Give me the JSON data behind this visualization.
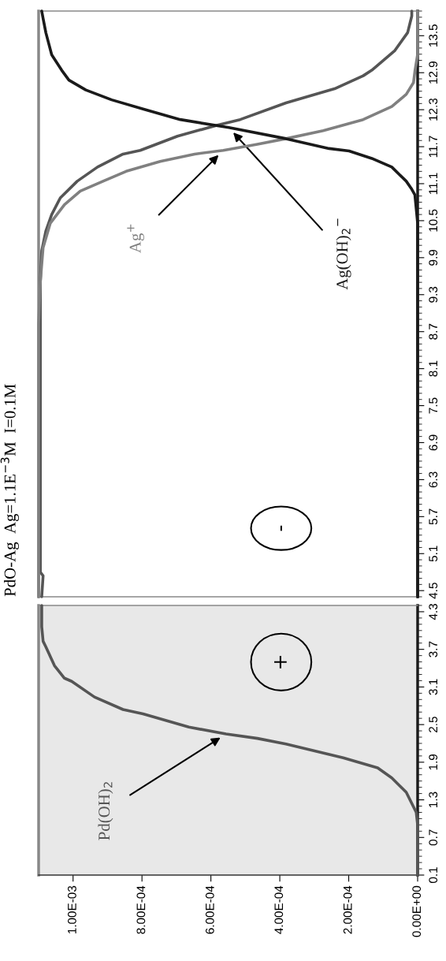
{
  "chart_data": [
    {
      "type": "line",
      "xlim": [
        0.0011,
        0
      ],
      "ylim": [
        0.1,
        4.4
      ],
      "xticks": [
        {
          "value": 0.001,
          "label": "1.00E-03"
        },
        {
          "value": 0.0008,
          "label": "8.00E-04"
        },
        {
          "value": 0.0006,
          "label": "6.00E-04"
        },
        {
          "value": 0.0004,
          "label": "4.00E-04"
        },
        {
          "value": 0.0002,
          "label": "2.00E-04"
        },
        {
          "value": 0,
          "label": "0.00E+00"
        }
      ],
      "yticks": [
        0.1,
        0.7,
        1.3,
        1.9,
        2.5,
        3.1,
        3.7,
        4.3
      ],
      "bands": [
        {
          "axis": "y",
          "from": 0.1,
          "to": 4.4,
          "color": "#e8e8e8"
        }
      ],
      "annotations": [
        "+"
      ],
      "series": [
        {
          "name": "Pd(OH)$_{2}$",
          "color": "#555555",
          "x": [
            0,
            0,
            4e-06,
            3.3e-05,
            7.5e-05,
            0.000116,
            0.000216,
            0.000382,
            0.000465,
            0.000556,
            0.000664,
            0.000797,
            0.000855,
            0.000938,
            0.001004,
            0.001025,
            0.001054,
            0.001079,
            0.001087,
            0.001091,
            0.001091
          ],
          "values": [
            0.1,
            0.9,
            1.1,
            1.42,
            1.65,
            1.81,
            1.97,
            2.19,
            2.28,
            2.35,
            2.46,
            2.67,
            2.74,
            2.94,
            3.19,
            3.24,
            3.44,
            3.74,
            3.83,
            4.06,
            4.4
          ]
        }
      ]
    },
    {
      "type": "line",
      "title": "PdO-Ag  Ag=1.1E$^{−3}$M  I=0.1M",
      "xlim": [
        0.0011,
        0
      ],
      "ylim": [
        4.4,
        13.9
      ],
      "tick_labels": "y",
      "yticks": [
        4.5,
        5.1,
        5.7,
        6.3,
        6.9,
        7.5,
        8.1,
        8.7,
        9.3,
        9.9,
        10.5,
        11.1,
        11.7,
        12.3,
        12.9,
        13.5
      ],
      "annotations": [
        "-"
      ],
      "series": [
        {
          "color": "#555555",
          "x": [
            0.001091,
            0.001087,
            0.001095,
            0.001095,
            0.001091,
            0.001079,
            0.001062,
            0.001037,
            0.000988,
            0.000929,
            0.000855,
            0.000805,
            0.000697,
            0.000581,
            0.000515,
            0.000382,
            0.000241,
            0.000158,
            0.000133,
            6.6e-05,
            2.9e-05,
            1.7e-05,
            1.7e-05
          ],
          "values": [
            4.4,
            4.74,
            4.8,
            9.51,
            10.01,
            10.33,
            10.6,
            10.87,
            11.14,
            11.37,
            11.58,
            11.64,
            11.87,
            12.05,
            12.14,
            12.41,
            12.64,
            12.85,
            12.94,
            13.26,
            13.55,
            13.82,
            13.9
          ]
        },
        {
          "name": "Ag$^{+}$",
          "color": "#808080",
          "x": [
            0.0011,
            0.0011,
            0.001095,
            0.001087,
            0.001066,
            0.001025,
            0.000979,
            0.000913,
            0.000846,
            0.000747,
            0.000647,
            0.000564,
            0.000465,
            0.000382,
            0.000274,
            0.000158,
            7.5e-05,
            3.3e-05,
            1.2e-05,
            8e-06,
            0,
            0
          ],
          "values": [
            4.4,
            8.83,
            9.51,
            10.06,
            10.46,
            10.76,
            10.98,
            11.14,
            11.3,
            11.46,
            11.58,
            11.64,
            11.74,
            11.83,
            11.96,
            12.14,
            12.35,
            12.55,
            12.74,
            12.92,
            13.2,
            13.9
          ]
        },
        {
          "name": "Ag(OH)$_{2}$$^{−}$",
          "color": "#1a1a1a",
          "x": [
            0,
            0,
            8e-06,
            1.7e-05,
            3.3e-05,
            7.5e-05,
            0.000133,
            0.000199,
            0.000257,
            0.000382,
            0.000548,
            0.000689,
            0.000797,
            0.000888,
            0.000963,
            0.001012,
            0.001033,
            0.001062,
            0.001079,
            0.001087,
            0.001091
          ],
          "values": [
            4.4,
            10.46,
            10.92,
            11.01,
            11.14,
            11.37,
            11.51,
            11.63,
            11.67,
            11.83,
            12.01,
            12.14,
            12.31,
            12.46,
            12.62,
            12.78,
            12.94,
            13.19,
            13.55,
            13.78,
            13.9
          ]
        }
      ]
    }
  ]
}
